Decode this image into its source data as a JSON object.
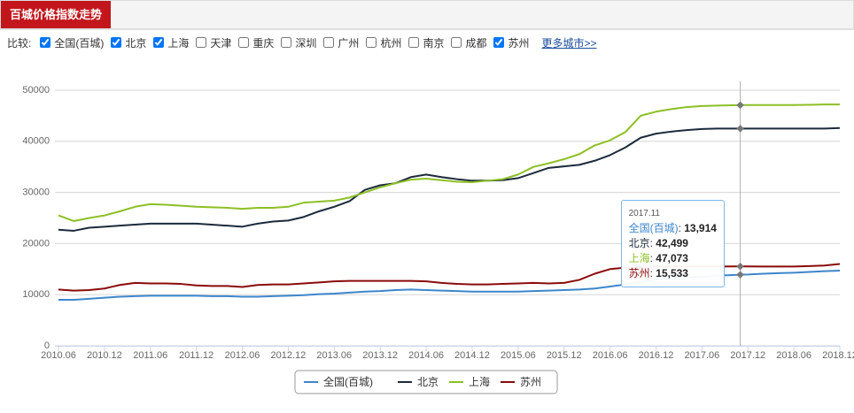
{
  "header": {
    "title": "百城价格指数走势"
  },
  "compare": {
    "label": "比较:",
    "more": "更多城市>>",
    "cities": [
      {
        "name": "全国(百城)",
        "checked": true
      },
      {
        "name": "北京",
        "checked": true
      },
      {
        "name": "上海",
        "checked": true
      },
      {
        "name": "天津",
        "checked": false
      },
      {
        "name": "重庆",
        "checked": false
      },
      {
        "name": "深圳",
        "checked": false
      },
      {
        "name": "广州",
        "checked": false
      },
      {
        "name": "杭州",
        "checked": false
      },
      {
        "name": "南京",
        "checked": false
      },
      {
        "name": "成都",
        "checked": false
      },
      {
        "name": "苏州",
        "checked": true
      }
    ]
  },
  "chart_data": {
    "type": "line",
    "x": [
      "2010.06",
      "2010.08",
      "2010.10",
      "2010.12",
      "2011.02",
      "2011.04",
      "2011.06",
      "2011.08",
      "2011.10",
      "2011.12",
      "2012.02",
      "2012.04",
      "2012.06",
      "2012.08",
      "2012.10",
      "2012.12",
      "2013.02",
      "2013.04",
      "2013.06",
      "2013.08",
      "2013.10",
      "2013.12",
      "2014.02",
      "2014.04",
      "2014.06",
      "2014.08",
      "2014.10",
      "2014.12",
      "2015.02",
      "2015.04",
      "2015.06",
      "2015.08",
      "2015.10",
      "2015.12",
      "2016.02",
      "2016.04",
      "2016.06",
      "2016.08",
      "2016.10",
      "2016.12",
      "2017.02",
      "2017.04",
      "2017.06",
      "2017.08",
      "2017.10",
      "2017.11",
      "2017.12",
      "2018.02",
      "2018.04",
      "2018.06",
      "2018.08",
      "2018.10",
      "2018.12"
    ],
    "xlim": [
      "2010.06",
      "2018.12"
    ],
    "xticks": [
      "2010.06",
      "2010.12",
      "2011.06",
      "2011.12",
      "2012.06",
      "2012.12",
      "2013.06",
      "2013.12",
      "2014.06",
      "2014.12",
      "2015.06",
      "2015.12",
      "2016.06",
      "2016.12",
      "2017.06",
      "2017.12",
      "2018.06",
      "2018.12"
    ],
    "ylim": [
      0,
      50000
    ],
    "yticks": [
      0,
      10000,
      20000,
      30000,
      40000,
      50000
    ],
    "grid": true,
    "series": [
      {
        "name": "全国(百城)",
        "color": "#3d86cc",
        "values": [
          9000,
          9000,
          9200,
          9400,
          9600,
          9700,
          9800,
          9800,
          9800,
          9800,
          9700,
          9700,
          9600,
          9600,
          9700,
          9800,
          9900,
          10100,
          10200,
          10400,
          10600,
          10700,
          10900,
          11000,
          10900,
          10800,
          10700,
          10600,
          10600,
          10600,
          10600,
          10700,
          10800,
          10900,
          11000,
          11200,
          11600,
          12000,
          12500,
          13000,
          13200,
          13400,
          13500,
          13700,
          13850,
          13914,
          13950,
          14100,
          14200,
          14300,
          14450,
          14600,
          14700
        ]
      },
      {
        "name": "北京",
        "color": "#1b2a3c",
        "values": [
          22700,
          22500,
          23100,
          23300,
          23500,
          23700,
          23900,
          23900,
          23900,
          23900,
          23700,
          23500,
          23300,
          23900,
          24300,
          24500,
          25200,
          26300,
          27200,
          28300,
          30500,
          31400,
          31800,
          33000,
          33500,
          33000,
          32600,
          32300,
          32300,
          32400,
          32800,
          33800,
          34800,
          35100,
          35400,
          36200,
          37300,
          38800,
          40700,
          41500,
          41900,
          42200,
          42400,
          42500,
          42500,
          42499,
          42500,
          42500,
          42500,
          42500,
          42500,
          42500,
          42600
        ]
      },
      {
        "name": "上海",
        "color": "#8dbf25",
        "values": [
          25500,
          24400,
          25000,
          25500,
          26300,
          27200,
          27700,
          27600,
          27400,
          27200,
          27100,
          27000,
          26800,
          27000,
          27000,
          27200,
          28000,
          28200,
          28400,
          29000,
          30000,
          31000,
          31800,
          32500,
          32700,
          32400,
          32100,
          32000,
          32300,
          32600,
          33500,
          35000,
          35700,
          36500,
          37500,
          39200,
          40200,
          41800,
          45000,
          45800,
          46300,
          46700,
          46900,
          47000,
          47050,
          47073,
          47100,
          47100,
          47100,
          47100,
          47150,
          47200,
          47200
        ]
      },
      {
        "name": "苏州",
        "color": "#8b0a0a",
        "values": [
          11000,
          10800,
          10900,
          11200,
          11900,
          12300,
          12200,
          12200,
          12100,
          11800,
          11700,
          11700,
          11500,
          11900,
          12000,
          12000,
          12200,
          12400,
          12600,
          12700,
          12700,
          12700,
          12700,
          12700,
          12600,
          12300,
          12100,
          12000,
          12000,
          12100,
          12200,
          12300,
          12200,
          12300,
          12900,
          14100,
          15000,
          15300,
          15400,
          15500,
          15500,
          15500,
          15500,
          15500,
          15533,
          15533,
          15533,
          15500,
          15500,
          15500,
          15600,
          15700,
          16000
        ]
      }
    ],
    "tooltip": {
      "x": "2017.11",
      "separator": ": ",
      "labels": [
        "13,914",
        "42,499",
        "47,073",
        "15,533"
      ]
    }
  }
}
